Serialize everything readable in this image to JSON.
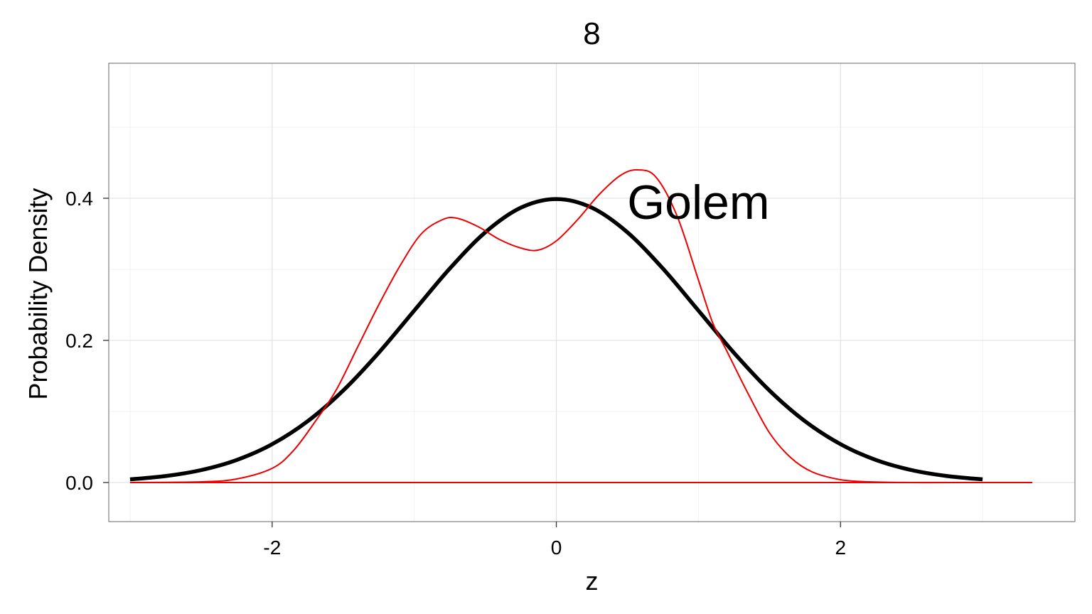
{
  "chart_data": {
    "type": "line",
    "title": "8",
    "xlabel": "z",
    "ylabel": "Probability Density",
    "xlim": [
      -3.15,
      3.65
    ],
    "ylim": [
      -0.055,
      0.59
    ],
    "x_ticks": [
      -2,
      0,
      2
    ],
    "x_tick_labels": [
      "-2",
      "0",
      "2"
    ],
    "y_ticks": [
      0.0,
      0.2,
      0.4
    ],
    "y_tick_labels": [
      "0.0",
      "0.2",
      "0.4"
    ],
    "grid": true,
    "legend": "none",
    "annotations": [
      {
        "text": "Golem",
        "x": 1.0,
        "y": 0.395
      }
    ],
    "series": [
      {
        "style": "thick-black",
        "color": "#000000",
        "x": [
          -3.0,
          -2.75,
          -2.5,
          -2.25,
          -2.0,
          -1.75,
          -1.5,
          -1.25,
          -1.0,
          -0.75,
          -0.5,
          -0.25,
          0.0,
          0.25,
          0.5,
          0.75,
          1.0,
          1.25,
          1.5,
          1.75,
          2.0,
          2.25,
          2.5,
          2.75,
          3.0
        ],
        "y": [
          0.0044,
          0.0091,
          0.0175,
          0.0317,
          0.054,
          0.0863,
          0.1295,
          0.1826,
          0.242,
          0.3011,
          0.3521,
          0.3867,
          0.3989,
          0.3867,
          0.3521,
          0.3011,
          0.242,
          0.1826,
          0.1295,
          0.0863,
          0.054,
          0.0317,
          0.0175,
          0.0091,
          0.0044
        ]
      },
      {
        "style": "thin-red",
        "color": "#ee0000",
        "x": [
          -3.0,
          -2.5,
          -2.25,
          -2.0,
          -1.85,
          -1.7,
          -1.55,
          -1.4,
          -1.25,
          -1.1,
          -0.95,
          -0.8,
          -0.7,
          -0.55,
          -0.4,
          -0.25,
          -0.13,
          0.0,
          0.15,
          0.3,
          0.45,
          0.57,
          0.7,
          0.85,
          1.0,
          1.1,
          1.2,
          1.35,
          1.5,
          1.65,
          1.8,
          2.0,
          2.2,
          2.5,
          2.8,
          3.15,
          3.35
        ],
        "y": [
          0.0,
          0.001,
          0.005,
          0.02,
          0.045,
          0.085,
          0.13,
          0.19,
          0.25,
          0.305,
          0.35,
          0.37,
          0.372,
          0.36,
          0.342,
          0.33,
          0.327,
          0.34,
          0.37,
          0.405,
          0.432,
          0.44,
          0.43,
          0.375,
          0.285,
          0.225,
          0.185,
          0.125,
          0.07,
          0.035,
          0.015,
          0.004,
          0.001,
          0.0,
          0.0,
          0.0,
          0.0
        ]
      },
      {
        "style": "thin-red-baseline",
        "color": "#ee0000",
        "x": [
          -3.0,
          3.35
        ],
        "y": [
          0.0,
          0.0
        ]
      }
    ]
  }
}
